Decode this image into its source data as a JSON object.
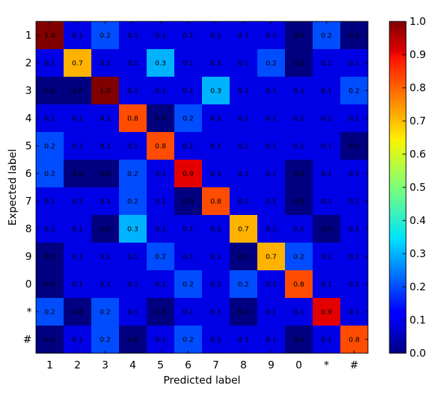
{
  "chart_data": {
    "type": "heatmap",
    "xlabel": "Predicted label",
    "ylabel": "Expected label",
    "x_categories": [
      "1",
      "2",
      "3",
      "4",
      "5",
      "6",
      "7",
      "8",
      "9",
      "0",
      "*",
      "#"
    ],
    "y_categories": [
      "1",
      "2",
      "3",
      "4",
      "5",
      "6",
      "7",
      "8",
      "9",
      "0",
      "*",
      "#"
    ],
    "values": [
      [
        1.0,
        0.1,
        0.2,
        0.1,
        0.1,
        0.1,
        0.1,
        0.1,
        0.1,
        0.0,
        0.2,
        0.0
      ],
      [
        0.1,
        0.7,
        0.1,
        0.1,
        0.3,
        0.1,
        0.1,
        0.1,
        0.2,
        0.0,
        0.1,
        0.1
      ],
      [
        0.0,
        0.0,
        1.0,
        0.1,
        0.1,
        0.1,
        0.3,
        0.1,
        0.1,
        0.1,
        0.1,
        0.2
      ],
      [
        0.1,
        0.1,
        0.1,
        0.8,
        0.0,
        0.2,
        0.1,
        0.1,
        0.1,
        0.1,
        0.1,
        0.1
      ],
      [
        0.2,
        0.1,
        0.1,
        0.1,
        0.8,
        0.1,
        0.1,
        0.1,
        0.1,
        0.1,
        0.1,
        0.0
      ],
      [
        0.2,
        0.0,
        0.0,
        0.2,
        0.1,
        0.9,
        0.1,
        0.1,
        0.1,
        0.0,
        0.1,
        0.1
      ],
      [
        0.1,
        0.1,
        0.1,
        0.2,
        0.1,
        0.0,
        0.8,
        0.1,
        0.1,
        0.0,
        0.1,
        0.1
      ],
      [
        0.1,
        0.1,
        0.0,
        0.3,
        0.1,
        0.1,
        0.1,
        0.7,
        0.1,
        0.1,
        0.0,
        0.1
      ],
      [
        0.0,
        0.1,
        0.1,
        0.1,
        0.2,
        0.1,
        0.1,
        0.0,
        0.7,
        0.2,
        0.1,
        0.1
      ],
      [
        0.0,
        0.1,
        0.1,
        0.1,
        0.1,
        0.2,
        0.1,
        0.2,
        0.1,
        0.8,
        0.1,
        0.1
      ],
      [
        0.2,
        0.0,
        0.2,
        0.1,
        0.0,
        0.1,
        0.1,
        0.0,
        0.1,
        0.1,
        0.9,
        0.1
      ],
      [
        0.0,
        0.1,
        0.2,
        0.0,
        0.1,
        0.2,
        0.1,
        0.1,
        0.1,
        0.0,
        0.1,
        0.8
      ]
    ],
    "colormap": "jet",
    "colorbar": {
      "range": [
        0.0,
        1.0
      ],
      "ticks": [
        "0.0",
        "0.1",
        "0.2",
        "0.3",
        "0.4",
        "0.5",
        "0.6",
        "0.7",
        "0.8",
        "0.9",
        "1.0"
      ]
    },
    "grid": false
  }
}
